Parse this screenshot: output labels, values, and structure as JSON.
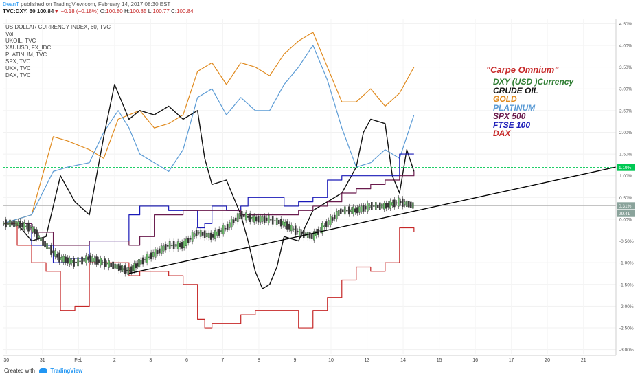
{
  "header": {
    "author": "DeanT",
    "published_text": "published on TradingView.com, February 14, 2017 08:30 EST",
    "symbol": "TVC:DXY, 60",
    "last": "100.84",
    "change": "−0.18 (−0.18%)",
    "open_label": "O:",
    "open": "100.80",
    "high_label": "H:",
    "high": "100.85",
    "low_label": "L:",
    "low": "100.77",
    "close_label": "C:",
    "close": "100.84"
  },
  "series_list": [
    "US DOLLAR CURRENCY INDEX, 60, TVC",
    "Vol",
    "UKOIL, TVC",
    "XAUUSD, FX_IDC",
    "PLATINUM, TVC",
    "SPX, TVC",
    "UKX, TVC",
    "DAX, TVC"
  ],
  "legend": {
    "title": "\"Carpe Omnium\"",
    "items": [
      {
        "label": "DXY (USD )Currency",
        "color": "#2e7d32"
      },
      {
        "label": "CRUDE OIL",
        "color": "#111111"
      },
      {
        "label": "GOLD",
        "color": "#e08a1e"
      },
      {
        "label": "PLATINUM",
        "color": "#5b9bd5"
      },
      {
        "label": "SPX 500",
        "color": "#6a1b4d"
      },
      {
        "label": "FTSE 100",
        "color": "#1a1ab8"
      },
      {
        "label": "DAX",
        "color": "#c62828"
      }
    ]
  },
  "price_badges": [
    {
      "label": "1.19%",
      "value": 1.19,
      "color": "#00c853"
    },
    {
      "label": "0.31%",
      "value": 0.31,
      "color": "#8aa39b"
    },
    {
      "label": "29.41",
      "value": 0.13,
      "color": "#8aa39b"
    }
  ],
  "footer": {
    "created_with": "Created with",
    "brand": "TradingView"
  },
  "chart_data": {
    "type": "line",
    "ylim": [
      -3.1,
      4.6
    ],
    "y_ticks": [
      "4.50%",
      "4.00%",
      "3.50%",
      "3.00%",
      "2.50%",
      "2.00%",
      "1.50%",
      "1.00%",
      "0.50%",
      "0.00%",
      "-0.50%",
      "-1.00%",
      "-1.50%",
      "-2.00%",
      "-2.50%",
      "-3.00%"
    ],
    "y_tick_values": [
      4.5,
      4.0,
      3.5,
      3.0,
      2.5,
      2.0,
      1.5,
      1.0,
      0.5,
      0.0,
      -0.5,
      -1.0,
      -1.5,
      -2.0,
      -2.5,
      -3.0
    ],
    "x_ticks": [
      "30",
      "31",
      "Feb",
      "2",
      "3",
      "6",
      "7",
      "8",
      "9",
      "10",
      "13",
      "14",
      "15",
      "16",
      "17",
      "20",
      "21"
    ],
    "xlim": [
      0,
      17
    ],
    "x_tick_values": [
      0.1,
      1.1,
      2.1,
      3.1,
      4.1,
      5.1,
      6.1,
      7.1,
      8.1,
      9.1,
      10.1,
      11.1,
      12.1,
      13.1,
      14.1,
      15.1,
      16.1
    ],
    "horizontal_lines": [
      {
        "value": 1.19,
        "color": "#00c853",
        "style": "dashed"
      },
      {
        "value": 0.31,
        "color": "#bbbbbb",
        "style": "solid"
      }
    ],
    "trendline": {
      "x": [
        3.5,
        17.0
      ],
      "y": [
        -1.25,
        1.2
      ],
      "color": "#000000"
    },
    "series": [
      {
        "name": "GOLD",
        "color": "#e08a1e",
        "x": [
          0.0,
          0.8,
          1.4,
          1.8,
          2.4,
          2.8,
          3.2,
          3.5,
          3.8,
          4.2,
          4.6,
          5.0,
          5.4,
          5.8,
          6.2,
          6.6,
          7.0,
          7.4,
          7.8,
          8.2,
          8.6,
          9.0,
          9.4,
          9.8,
          10.2,
          10.6,
          11.0,
          11.4
        ],
        "y": [
          -0.1,
          0.1,
          1.9,
          1.8,
          1.6,
          1.4,
          2.3,
          2.4,
          2.5,
          2.1,
          2.2,
          2.4,
          3.4,
          3.6,
          3.1,
          3.6,
          3.5,
          3.3,
          3.8,
          4.1,
          4.3,
          3.5,
          2.7,
          2.7,
          3.0,
          2.6,
          2.9,
          3.5
        ]
      },
      {
        "name": "PLATINUM",
        "color": "#5b9bd5",
        "x": [
          0.0,
          0.8,
          1.4,
          1.8,
          2.4,
          2.8,
          3.2,
          3.5,
          3.8,
          4.2,
          4.6,
          5.0,
          5.4,
          5.8,
          6.2,
          6.6,
          7.0,
          7.4,
          7.8,
          8.2,
          8.6,
          9.0,
          9.4,
          9.8,
          10.2,
          10.6,
          11.0,
          11.4
        ],
        "y": [
          -0.1,
          0.1,
          1.1,
          1.2,
          1.3,
          2.0,
          2.5,
          2.1,
          1.5,
          1.3,
          1.1,
          1.6,
          2.8,
          3.0,
          2.4,
          2.8,
          2.5,
          2.5,
          3.1,
          3.5,
          4.0,
          3.2,
          2.1,
          1.2,
          1.3,
          1.6,
          1.4,
          2.4
        ]
      },
      {
        "name": "CRUDE OIL",
        "color": "#111111",
        "x": [
          0.0,
          0.4,
          0.8,
          1.2,
          1.6,
          2.0,
          2.4,
          2.8,
          3.1,
          3.5,
          3.8,
          4.2,
          4.6,
          5.0,
          5.4,
          5.6,
          5.8,
          6.2,
          6.6,
          6.8,
          7.0,
          7.2,
          7.4,
          7.6,
          7.8,
          8.2,
          8.6,
          9.0,
          9.4,
          9.8,
          10.0,
          10.2,
          10.6,
          10.8,
          11.0,
          11.2,
          11.4
        ],
        "y": [
          -0.1,
          -0.1,
          -0.5,
          -0.4,
          1.0,
          0.4,
          0.1,
          1.9,
          3.1,
          2.3,
          2.5,
          2.4,
          2.6,
          2.3,
          2.5,
          1.4,
          0.8,
          0.9,
          0.1,
          -0.5,
          -1.2,
          -1.6,
          -1.5,
          -1.1,
          -0.4,
          -0.5,
          0.2,
          0.4,
          0.6,
          1.2,
          2.0,
          2.3,
          2.2,
          1.0,
          0.6,
          1.6,
          1.1
        ]
      },
      {
        "name": "FTSE 100",
        "color": "#1a1ab8",
        "x": [
          0.0,
          0.8,
          1.4,
          1.8,
          2.4,
          2.8,
          3.2,
          3.5,
          3.8,
          4.2,
          4.6,
          5.0,
          5.4,
          5.6,
          5.8,
          6.2,
          6.6,
          6.8,
          7.0,
          7.4,
          7.8,
          8.2,
          8.6,
          9.0,
          9.4,
          9.8,
          10.2,
          10.6,
          11.0,
          11.4
        ],
        "y": [
          -0.1,
          -0.6,
          -1.0,
          -0.9,
          -0.5,
          -0.5,
          -0.5,
          0.1,
          0.3,
          0.3,
          0.2,
          0.2,
          -0.2,
          -0.1,
          0.3,
          0.2,
          0.3,
          0.5,
          0.5,
          0.5,
          0.3,
          0.4,
          0.5,
          0.9,
          1.0,
          1.0,
          1.0,
          1.0,
          1.5,
          1.5
        ]
      },
      {
        "name": "SPX 500",
        "color": "#6a1b4d",
        "x": [
          0.0,
          0.8,
          1.4,
          1.8,
          2.4,
          2.8,
          3.2,
          3.5,
          3.8,
          4.2,
          4.6,
          5.0,
          5.4,
          5.8,
          6.2,
          6.6,
          7.0,
          7.4,
          7.8,
          8.2,
          8.6,
          9.0,
          9.4,
          9.8,
          10.2,
          10.6,
          11.0,
          11.4
        ],
        "y": [
          -0.1,
          -0.3,
          -0.6,
          -0.6,
          -0.5,
          -0.5,
          -0.5,
          -0.6,
          -0.4,
          0.1,
          0.1,
          0.2,
          0.2,
          0.2,
          0.2,
          0.1,
          0.1,
          0.1,
          0.1,
          0.2,
          0.3,
          0.4,
          0.6,
          0.7,
          0.8,
          0.9,
          1.0,
          1.1
        ]
      },
      {
        "name": "DAX",
        "color": "#c62828",
        "x": [
          0.0,
          0.4,
          0.8,
          1.2,
          1.6,
          2.0,
          2.4,
          2.8,
          3.2,
          3.5,
          3.8,
          4.2,
          4.6,
          5.0,
          5.4,
          5.6,
          5.8,
          6.2,
          6.6,
          7.0,
          7.4,
          7.8,
          8.2,
          8.6,
          9.0,
          9.4,
          9.8,
          10.2,
          10.6,
          11.0,
          11.4
        ],
        "y": [
          -0.1,
          -0.6,
          -1.0,
          -1.2,
          -2.1,
          -2.0,
          -1.0,
          -1.0,
          -1.0,
          -1.3,
          -1.2,
          -1.2,
          -1.3,
          -1.5,
          -2.3,
          -2.5,
          -2.4,
          -2.4,
          -2.2,
          -2.1,
          -2.1,
          -2.1,
          -2.5,
          -2.1,
          -1.8,
          -1.4,
          -1.1,
          -1.2,
          -1.0,
          -0.2,
          -0.3
        ]
      },
      {
        "name": "DXY (USD )Currency",
        "color": "#2e7d32",
        "style": "candles",
        "x": [
          0.0,
          0.4,
          0.8,
          1.2,
          1.6,
          2.0,
          2.4,
          2.8,
          3.2,
          3.5,
          3.8,
          4.2,
          4.6,
          5.0,
          5.4,
          5.8,
          6.2,
          6.6,
          7.0,
          7.4,
          7.8,
          8.2,
          8.6,
          9.0,
          9.4,
          9.8,
          10.2,
          10.6,
          11.0,
          11.4
        ],
        "y": [
          -0.1,
          -0.1,
          -0.2,
          -0.6,
          -0.9,
          -1.0,
          -0.9,
          -1.0,
          -1.1,
          -1.2,
          -1.0,
          -0.8,
          -0.6,
          -0.6,
          -0.3,
          -0.4,
          -0.2,
          0.1,
          0.0,
          0.0,
          -0.1,
          -0.3,
          -0.4,
          -0.1,
          0.2,
          0.2,
          0.3,
          0.3,
          0.4,
          0.31
        ]
      }
    ]
  }
}
